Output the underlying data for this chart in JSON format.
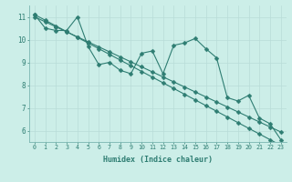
{
  "xlabel": "Humidex (Indice chaleur)",
  "bg_color": "#cceee8",
  "line_color": "#2e7d72",
  "grid_color": "#b8dcd8",
  "xlim": [
    -0.5,
    23.5
  ],
  "ylim": [
    5.5,
    11.5
  ],
  "xticks": [
    0,
    1,
    2,
    3,
    4,
    5,
    6,
    7,
    8,
    9,
    10,
    11,
    12,
    13,
    14,
    15,
    16,
    17,
    18,
    19,
    20,
    21,
    22,
    23
  ],
  "yticks": [
    6,
    7,
    8,
    9,
    10,
    11
  ],
  "series_zigzag": [
    11.1,
    10.5,
    10.4,
    10.4,
    11.0,
    9.7,
    8.9,
    9.0,
    8.65,
    8.5,
    9.4,
    9.5,
    8.5,
    9.75,
    9.85,
    10.05,
    9.6,
    9.2,
    7.45,
    7.3,
    7.55,
    6.55,
    6.3,
    5.6
  ],
  "series_line1": [
    11.1,
    10.85,
    10.6,
    10.35,
    10.1,
    9.85,
    9.6,
    9.35,
    9.1,
    8.85,
    8.6,
    8.35,
    8.1,
    7.85,
    7.6,
    7.35,
    7.1,
    6.85,
    6.6,
    6.35,
    6.1,
    5.85,
    5.6,
    5.35
  ],
  "series_line2": [
    11.0,
    10.78,
    10.56,
    10.34,
    10.12,
    9.9,
    9.68,
    9.46,
    9.24,
    9.02,
    8.8,
    8.58,
    8.36,
    8.14,
    7.92,
    7.7,
    7.48,
    7.26,
    7.04,
    6.82,
    6.6,
    6.38,
    6.16,
    5.94
  ]
}
